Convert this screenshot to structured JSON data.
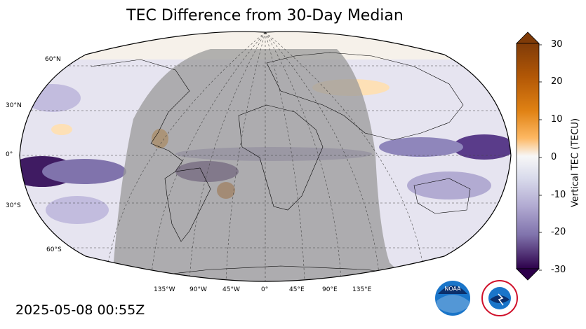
{
  "title": "TEC Difference from 30-Day Median",
  "timestamp": "2025-05-08 00:55Z",
  "map": {
    "projection": "Robinson",
    "lat_labels": [
      "60°N",
      "30°N",
      "0°",
      "30°S",
      "60°S"
    ],
    "lon_labels": [
      "135°W",
      "90°W",
      "45°W",
      "0°",
      "45°E",
      "90°E",
      "135°E"
    ],
    "night_shading": "gray overlay over Americas/Atlantic/Africa/Europe"
  },
  "colorbar": {
    "label": "Vertical TEC (TECU)",
    "ticks": [
      "30",
      "20",
      "10",
      "0",
      "-10",
      "-20",
      "-30"
    ],
    "range": [
      -30,
      30
    ],
    "colormap": "PuOr (purple negative, orange positive)",
    "colors": {
      "max": "#7f3b08",
      "mid": "#f7f7f7",
      "min": "#2d004b"
    }
  },
  "logos": {
    "noaa_text": "NOAA",
    "nws_text": "NATIONAL WEATHER SERVICE"
  }
}
